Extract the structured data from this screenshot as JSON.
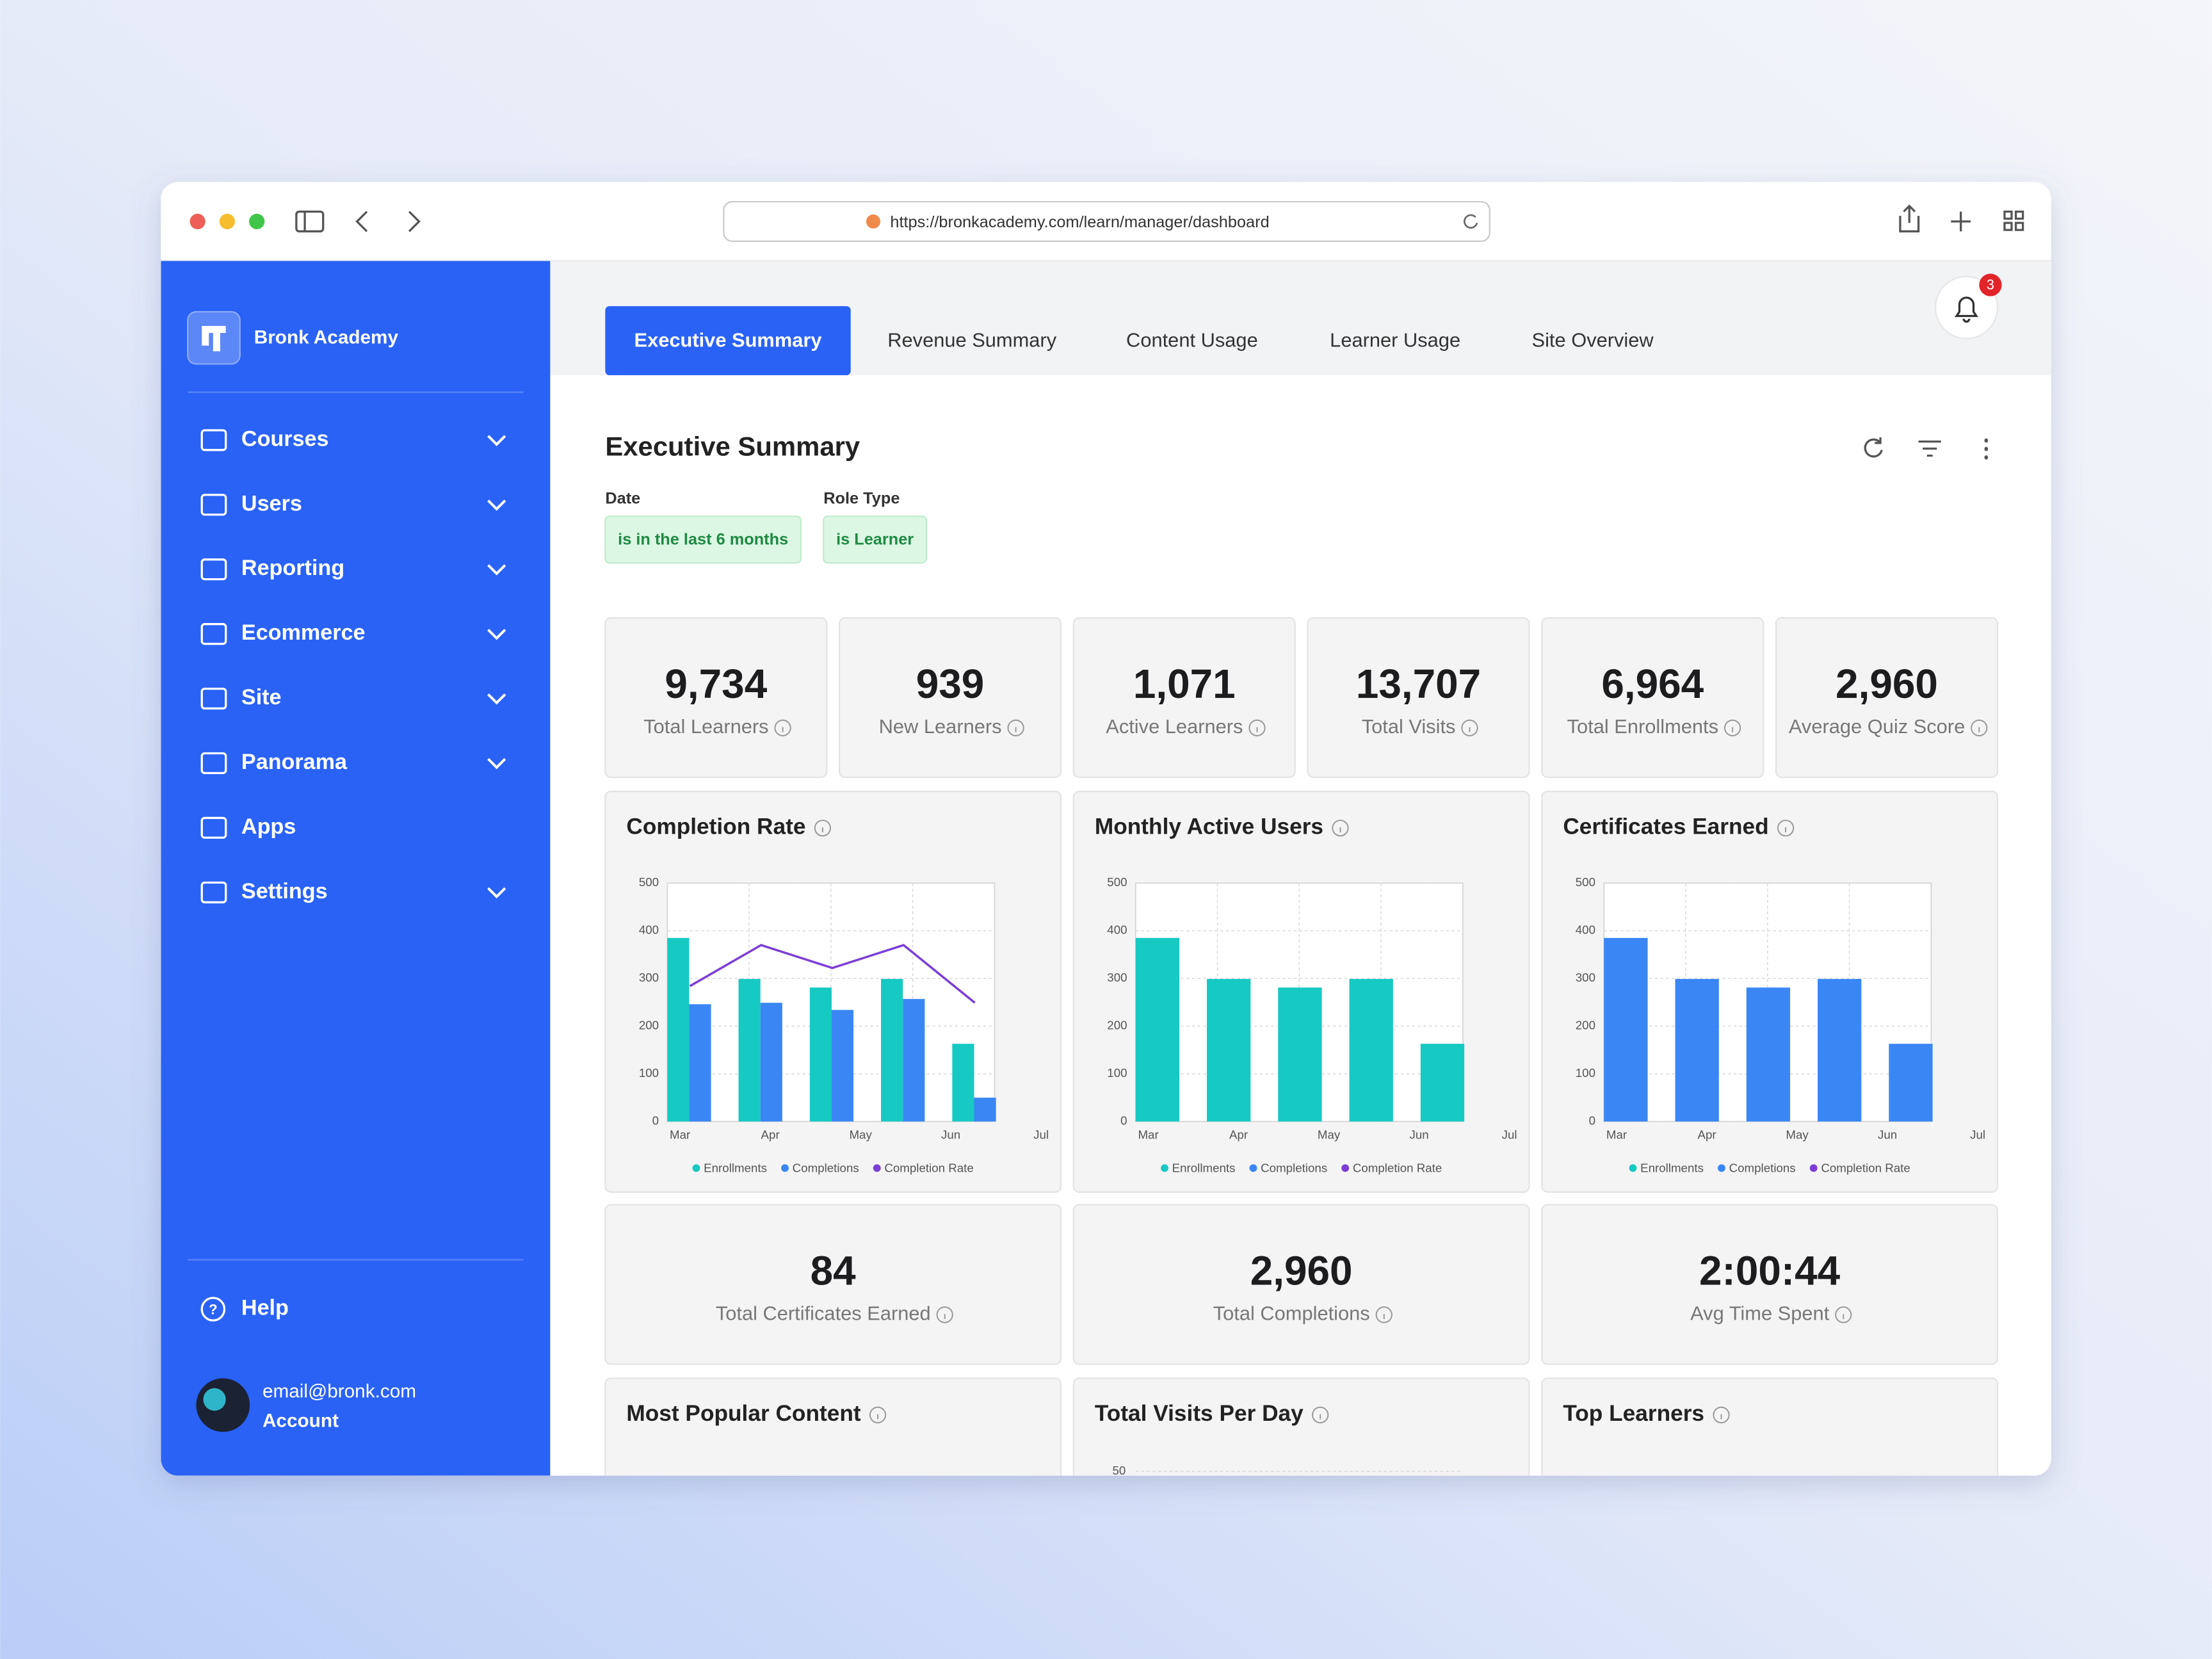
{
  "browser": {
    "url": "https://bronkacademy.com/learn/manager/dashboard"
  },
  "sidebar": {
    "brand": "Bronk Academy",
    "nav": [
      {
        "label": "Courses",
        "expandable": true
      },
      {
        "label": "Users",
        "expandable": true
      },
      {
        "label": "Reporting",
        "expandable": true
      },
      {
        "label": "Ecommerce",
        "expandable": true
      },
      {
        "label": "Site",
        "expandable": true
      },
      {
        "label": "Panorama",
        "expandable": true
      },
      {
        "label": "Apps",
        "expandable": false
      },
      {
        "label": "Settings",
        "expandable": true
      }
    ],
    "help": "Help",
    "account": {
      "email": "email@bronk.com",
      "label": "Account"
    }
  },
  "notifications": {
    "count": 3
  },
  "tabs": [
    "Executive Summary",
    "Revenue Summary",
    "Content Usage",
    "Learner Usage",
    "Site Overview"
  ],
  "section_title": "Executive Summary",
  "filters": [
    {
      "label": "Date",
      "value": "is in the last 6 months"
    },
    {
      "label": "Role Type",
      "value": "is Learner"
    }
  ],
  "kpis": [
    {
      "value": "9,734",
      "label": "Total Learners"
    },
    {
      "value": "939",
      "label": "New Learners"
    },
    {
      "value": "1,071",
      "label": "Active Learners"
    },
    {
      "value": "13,707",
      "label": "Total Visits"
    },
    {
      "value": "6,964",
      "label": "Total Enrollments"
    },
    {
      "value": "2,960",
      "label": "Average Quiz Score"
    }
  ],
  "charts": [
    {
      "type": "bar",
      "title": "Completion Rate",
      "categories": [
        "Mar",
        "Apr",
        "May",
        "Jun",
        "Jul"
      ],
      "ylim": [
        0,
        500
      ],
      "yticks": [
        0,
        100,
        200,
        300,
        400,
        500
      ],
      "grid": true,
      "series": [
        {
          "name": "Enrollments",
          "color": "#17c9c3",
          "values": [
            385,
            299,
            281,
            299,
            163
          ]
        },
        {
          "name": "Completions",
          "color": "#3a86f5",
          "values": [
            246,
            249,
            234,
            257,
            50
          ]
        },
        {
          "name": "Completion Rate",
          "color": "#7b3fd6",
          "type": "line",
          "values": [
            284,
            370,
            322,
            370,
            249
          ]
        }
      ]
    },
    {
      "type": "bar",
      "title": "Monthly Active Users",
      "categories": [
        "Mar",
        "Apr",
        "May",
        "Jun",
        "Jul"
      ],
      "ylim": [
        0,
        500
      ],
      "yticks": [
        0,
        100,
        200,
        300,
        400,
        500
      ],
      "grid": true,
      "series": [
        {
          "name": "Enrollments",
          "color": "#17c9c3",
          "values": [
            385,
            299,
            281,
            299,
            163
          ]
        },
        {
          "name": "Completions",
          "color": "#3a86f5",
          "values": [
            null,
            null,
            null,
            null,
            null
          ]
        },
        {
          "name": "Completion Rate",
          "color": "#7b3fd6",
          "type": "line",
          "values": [
            null,
            null,
            null,
            null,
            null
          ]
        }
      ]
    },
    {
      "type": "bar",
      "title": "Certificates Earned",
      "categories": [
        "Mar",
        "Apr",
        "May",
        "Jun",
        "Jul"
      ],
      "ylim": [
        0,
        500
      ],
      "yticks": [
        0,
        100,
        200,
        300,
        400,
        500
      ],
      "grid": true,
      "series": [
        {
          "name": "Enrollments",
          "color": "#17c9c3",
          "values": [
            null,
            null,
            null,
            null,
            null
          ]
        },
        {
          "name": "Completions",
          "color": "#3a86f5",
          "values": [
            385,
            299,
            281,
            299,
            163
          ]
        },
        {
          "name": "Completion Rate",
          "color": "#7b3fd6",
          "type": "line",
          "values": [
            null,
            null,
            null,
            null,
            null
          ]
        }
      ]
    }
  ],
  "summary_kpis": [
    {
      "value": "84",
      "label": "Total Certificates Earned"
    },
    {
      "value": "2,960",
      "label": "Total Completions"
    },
    {
      "value": "2:00:44",
      "label": "Avg Time Spent"
    }
  ],
  "bottom_cards": [
    {
      "title": "Most Popular Content"
    },
    {
      "title": "Total Visits Per Day",
      "yticks": [
        50
      ]
    },
    {
      "title": "Top Learners"
    }
  ]
}
